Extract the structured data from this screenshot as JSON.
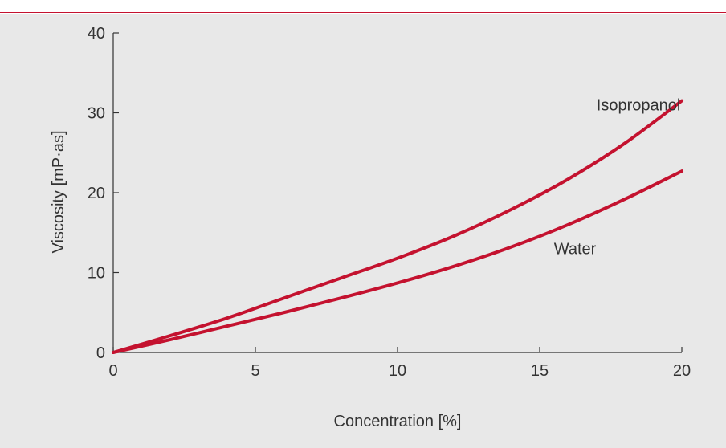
{
  "chart_data": {
    "type": "line",
    "title": "",
    "xlabel": "Concentration [%]",
    "ylabel": "Viscosity [mP·as]",
    "xlim": [
      0,
      20
    ],
    "ylim": [
      0,
      40
    ],
    "xticks": [
      0,
      5,
      10,
      15,
      20
    ],
    "yticks": [
      0,
      10,
      20,
      30,
      40
    ],
    "grid": false,
    "legend": "none",
    "series": [
      {
        "name": "Isopropanol",
        "color": "#c4122f",
        "x": [
          0,
          2,
          4,
          6,
          8,
          10,
          12,
          14,
          16,
          18,
          20
        ],
        "y": [
          0,
          2.1,
          4.3,
          6.8,
          9.3,
          11.8,
          14.6,
          17.9,
          21.7,
          26.2,
          31.5
        ]
      },
      {
        "name": "Water",
        "color": "#c4122f",
        "x": [
          0,
          2,
          4,
          6,
          8,
          10,
          12,
          14,
          16,
          18,
          20
        ],
        "y": [
          0,
          1.6,
          3.3,
          5.0,
          6.8,
          8.7,
          10.8,
          13.2,
          16.0,
          19.2,
          22.7
        ]
      }
    ]
  }
}
